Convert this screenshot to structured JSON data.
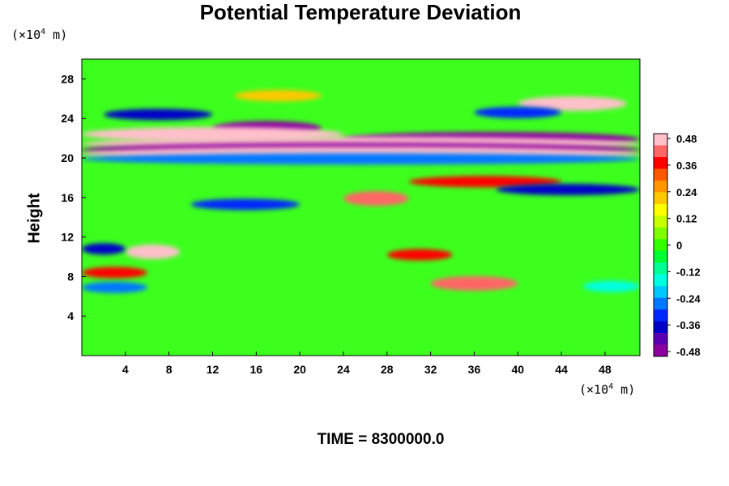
{
  "chart_data": {
    "type": "heatmap",
    "title": "Potential Temperature Deviation",
    "ylabel": "Height",
    "xlabel": "",
    "x_unit_label": "(×10",
    "x_unit_exp": "4",
    "x_unit_tail": " m)",
    "y_unit_label": "(×10",
    "y_unit_exp": "4",
    "y_unit_tail": " m)",
    "xlim": [
      0,
      51.2
    ],
    "ylim": [
      0,
      30
    ],
    "x_ticks": [
      "4",
      "8",
      "12",
      "16",
      "20",
      "24",
      "28",
      "32",
      "36",
      "40",
      "44",
      "48"
    ],
    "y_ticks": [
      "4",
      "8",
      "12",
      "16",
      "20",
      "24",
      "28"
    ],
    "colorbar": {
      "range": [
        -0.48,
        0.48
      ],
      "tick_labels": [
        "0.48",
        "0.36",
        "0.24",
        "0.12",
        "0",
        "-0.12",
        "-0.24",
        "-0.36",
        "-0.48"
      ],
      "colors_top_to_bottom": [
        "#ffc0cb",
        "#ff6666",
        "#ff0000",
        "#ff5a00",
        "#ff9600",
        "#ffc800",
        "#ffff00",
        "#c8ff00",
        "#7dff00",
        "#32ff00",
        "#00ff32",
        "#00ff96",
        "#00ffe1",
        "#00c8ff",
        "#0078ff",
        "#0028ff",
        "#0000c8",
        "#5a00b4",
        "#8c00a0"
      ]
    },
    "bands": [
      {
        "y_center": 26.3,
        "value": 0.2,
        "x_range": [
          14,
          22
        ]
      },
      {
        "y_center": 25.5,
        "value": 0.48,
        "x_range": [
          40,
          50
        ]
      },
      {
        "y_center": 24.4,
        "value": -0.36,
        "x_range": [
          2,
          12
        ]
      },
      {
        "y_center": 24.6,
        "value": -0.3,
        "x_range": [
          36,
          44
        ]
      },
      {
        "y_center": 23.0,
        "value": -0.48,
        "x_range": [
          12,
          22
        ]
      },
      {
        "y_center": 22.4,
        "value": 0.48,
        "x_range": [
          0,
          24
        ]
      },
      {
        "y_center": 21.9,
        "value": -0.48,
        "x_range": [
          24,
          51.2
        ]
      },
      {
        "y_center": 21.4,
        "value": 0.48,
        "x_range": [
          0,
          51.2
        ]
      },
      {
        "y_center": 20.8,
        "value": -0.48,
        "x_range": [
          0,
          51.2
        ]
      },
      {
        "y_center": 20.4,
        "value": 0.48,
        "x_range": [
          0,
          51.2
        ]
      },
      {
        "y_center": 19.9,
        "value": -0.24,
        "x_range": [
          0,
          51.2
        ]
      },
      {
        "y_center": 17.6,
        "value": 0.36,
        "x_range": [
          30,
          44
        ]
      },
      {
        "y_center": 16.8,
        "value": -0.36,
        "x_range": [
          38,
          51.2
        ]
      },
      {
        "y_center": 15.9,
        "value": 0.4,
        "x_range": [
          24,
          30
        ]
      },
      {
        "y_center": 15.3,
        "value": -0.3,
        "x_range": [
          10,
          20
        ]
      },
      {
        "y_center": 10.5,
        "value": 0.48,
        "x_range": [
          4,
          9
        ]
      },
      {
        "y_center": 10.2,
        "value": 0.36,
        "x_range": [
          28,
          34
        ]
      },
      {
        "y_center": 10.8,
        "value": -0.36,
        "x_range": [
          0,
          4
        ]
      },
      {
        "y_center": 8.4,
        "value": 0.36,
        "x_range": [
          0,
          6
        ]
      },
      {
        "y_center": 7.3,
        "value": 0.4,
        "x_range": [
          32,
          40
        ]
      },
      {
        "y_center": 6.9,
        "value": -0.24,
        "x_range": [
          0,
          6
        ]
      },
      {
        "y_center": 7.0,
        "value": -0.18,
        "x_range": [
          46,
          51.2
        ]
      }
    ]
  },
  "footer": {
    "time_label": "TIME = 8300000.0"
  }
}
